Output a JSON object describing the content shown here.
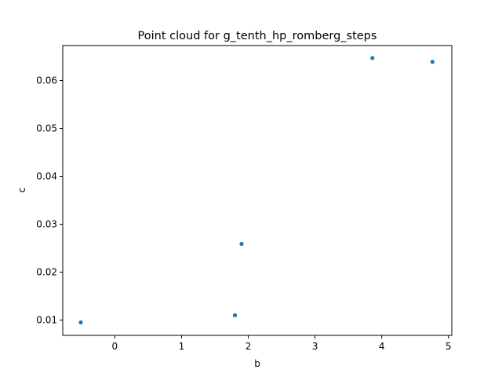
{
  "chart_data": {
    "type": "scatter",
    "title": "Point cloud for g_tenth_hp_romberg_steps",
    "xlabel": "b",
    "ylabel": "c",
    "xlim": [
      -0.78,
      5.05
    ],
    "ylim": [
      0.0068,
      0.0673
    ],
    "x_ticks": [
      0,
      1,
      2,
      3,
      4,
      5
    ],
    "y_ticks": [
      0.01,
      0.02,
      0.03,
      0.04,
      0.05,
      0.06
    ],
    "x_tick_labels": [
      "0",
      "1",
      "2",
      "3",
      "4",
      "5"
    ],
    "y_tick_labels": [
      "0.01",
      "0.02",
      "0.03",
      "0.04",
      "0.05",
      "0.06"
    ],
    "grid": false,
    "marker_color": "#1f77b4",
    "points": [
      {
        "x": -0.51,
        "y": 0.0095
      },
      {
        "x": 1.8,
        "y": 0.011
      },
      {
        "x": 1.9,
        "y": 0.0259
      },
      {
        "x": 3.86,
        "y": 0.0647
      },
      {
        "x": 4.76,
        "y": 0.0639
      }
    ]
  }
}
